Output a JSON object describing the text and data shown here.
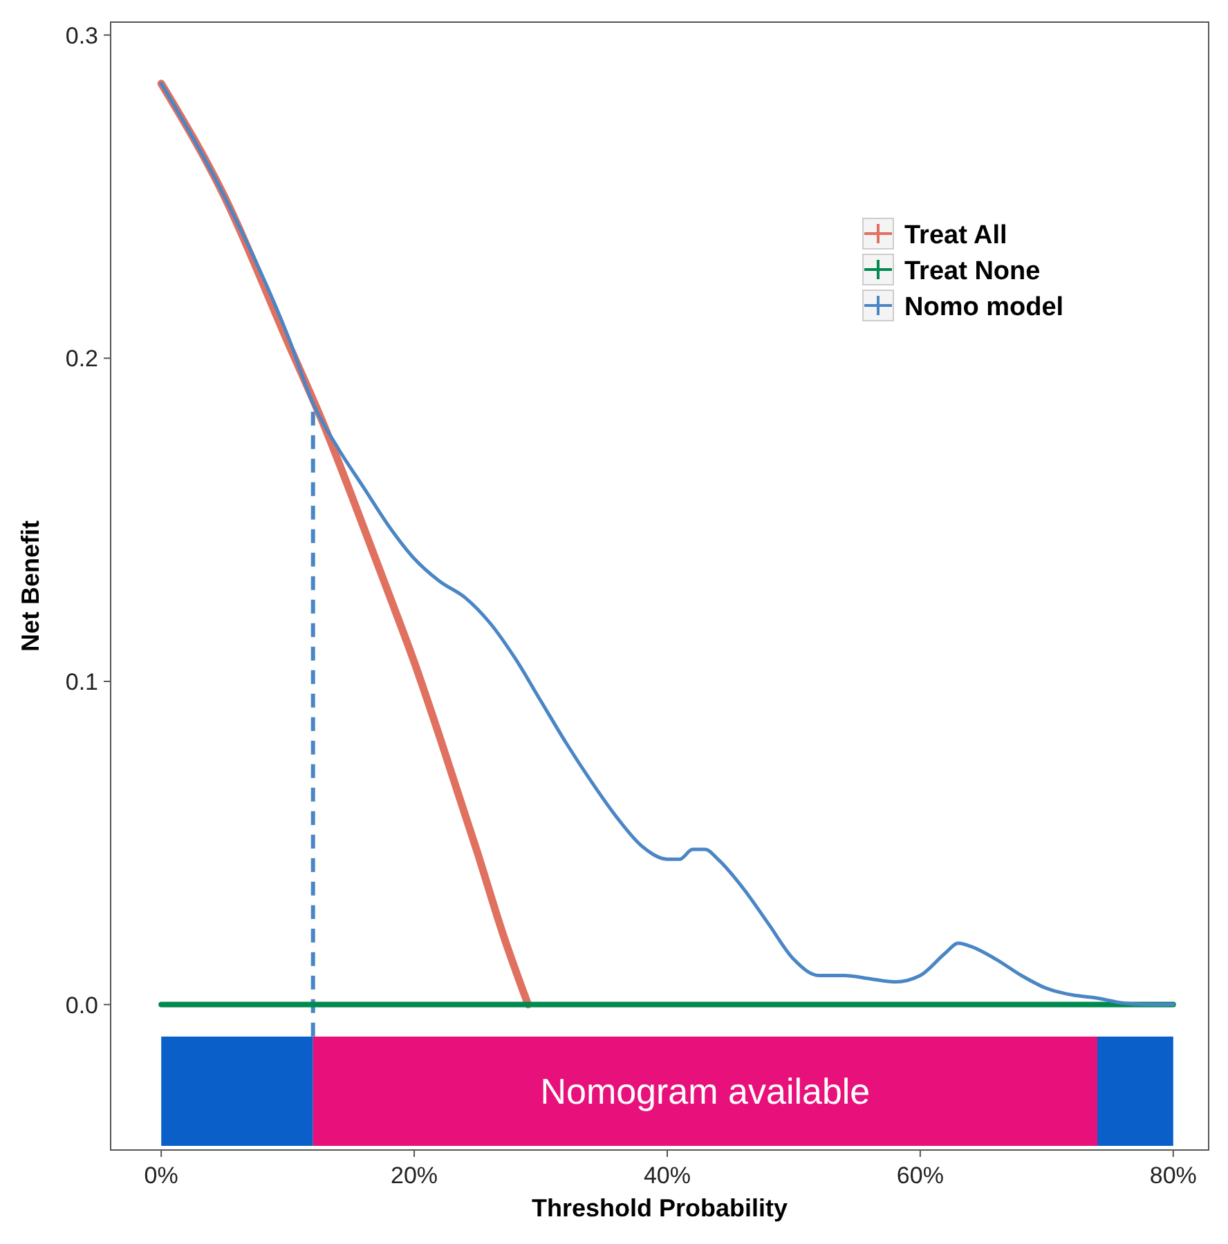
{
  "chart_data": {
    "type": "line",
    "xlabel": "Threshold Probability",
    "ylabel": "Net Benefit",
    "xlim": [
      -4,
      82.8
    ],
    "ylim": [
      -0.045,
      0.304
    ],
    "xticks": [
      {
        "value": 0,
        "label": "0%"
      },
      {
        "value": 20,
        "label": "20%"
      },
      {
        "value": 40,
        "label": "40%"
      },
      {
        "value": 60,
        "label": "60%"
      },
      {
        "value": 80,
        "label": "80%"
      }
    ],
    "yticks": [
      {
        "value": 0,
        "label": "0.0"
      },
      {
        "value": 0.1,
        "label": "0.1"
      },
      {
        "value": 0.2,
        "label": "0.2"
      },
      {
        "value": 0.3,
        "label": "0.3"
      }
    ],
    "grid": false,
    "legend": "top right",
    "line_style": "solid",
    "series": [
      {
        "name": "Treat All",
        "color": "#e07060",
        "x": [
          0,
          5,
          10,
          13,
          15,
          18,
          20,
          22,
          25,
          27,
          29
        ],
        "values": [
          0.285,
          0.25,
          0.205,
          0.178,
          0.158,
          0.127,
          0.106,
          0.083,
          0.047,
          0.022,
          0
        ]
      },
      {
        "name": "Treat None",
        "color": "#008a50",
        "x": [
          0,
          80
        ],
        "values": [
          0,
          0
        ]
      },
      {
        "name": "Nomo model",
        "color": "#4a86c5",
        "x": [
          0,
          5,
          10,
          12,
          14,
          16,
          18,
          20,
          22,
          24,
          26,
          28,
          30,
          32,
          34,
          36,
          38,
          40,
          41,
          42,
          43,
          44,
          46,
          48,
          50,
          52,
          54,
          56,
          58,
          60,
          62,
          63,
          64,
          66,
          68,
          70,
          72,
          74,
          76,
          78,
          80
        ],
        "values": [
          0.285,
          0.25,
          0.207,
          0.186,
          0.172,
          0.16,
          0.148,
          0.138,
          0.131,
          0.126,
          0.118,
          0.107,
          0.094,
          0.081,
          0.069,
          0.058,
          0.049,
          0.045,
          0.045,
          0.048,
          0.048,
          0.045,
          0.036,
          0.025,
          0.014,
          0.009,
          0.009,
          0.008,
          0.007,
          0.009,
          0.016,
          0.019,
          0.018,
          0.014,
          0.009,
          0.005,
          0.003,
          0.002,
          0.0005,
          0,
          0
        ]
      }
    ],
    "ref_lines": [
      {
        "axis": "x",
        "value": 12,
        "color": "#4a86c5",
        "line_style": "dashed"
      }
    ],
    "bands": [
      {
        "axis": "x",
        "from": 0,
        "to": 12,
        "color": "#0a5fc8"
      },
      {
        "axis": "x",
        "from": 12,
        "to": 74,
        "color": "#e8107a",
        "label": "Nomogram available"
      },
      {
        "axis": "x",
        "from": 74,
        "to": 80,
        "color": "#0a5fc8"
      }
    ]
  }
}
